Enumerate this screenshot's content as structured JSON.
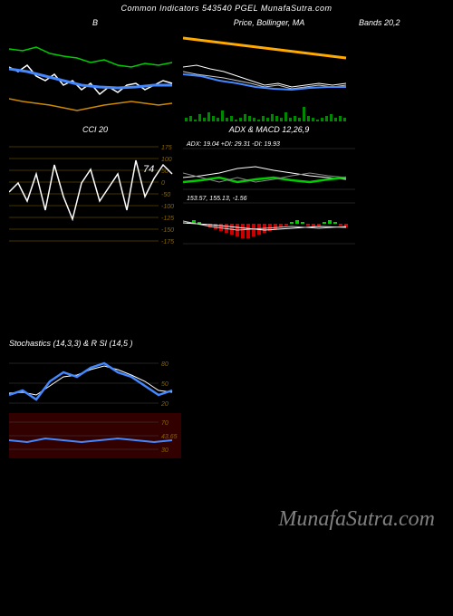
{
  "header": "Common Indicators 543540 PGEL MunafaSutra.com",
  "watermark": "MunafaSutra.com",
  "panels": {
    "bollinger": {
      "title_left": "B",
      "title_center": "Price, Bollinger, MA",
      "title_right": "Bands 20,2",
      "bg": "#000000",
      "lines": {
        "upper": {
          "color": "#00cc00",
          "width": 1.5,
          "points": [
            [
              0,
              20
            ],
            [
              15,
              22
            ],
            [
              30,
              18
            ],
            [
              45,
              25
            ],
            [
              60,
              28
            ],
            [
              75,
              30
            ],
            [
              90,
              35
            ],
            [
              105,
              32
            ],
            [
              120,
              38
            ],
            [
              135,
              40
            ],
            [
              150,
              36
            ],
            [
              165,
              38
            ],
            [
              180,
              35
            ]
          ]
        },
        "lower": {
          "color": "#cc8800",
          "width": 1.5,
          "points": [
            [
              0,
              75
            ],
            [
              15,
              78
            ],
            [
              30,
              80
            ],
            [
              45,
              82
            ],
            [
              60,
              85
            ],
            [
              75,
              88
            ],
            [
              90,
              85
            ],
            [
              105,
              82
            ],
            [
              120,
              80
            ],
            [
              135,
              78
            ],
            [
              150,
              80
            ],
            [
              165,
              82
            ],
            [
              180,
              80
            ]
          ]
        },
        "price": {
          "color": "#ffffff",
          "width": 1.5,
          "points": [
            [
              0,
              40
            ],
            [
              10,
              45
            ],
            [
              20,
              38
            ],
            [
              30,
              50
            ],
            [
              40,
              55
            ],
            [
              50,
              48
            ],
            [
              60,
              60
            ],
            [
              70,
              55
            ],
            [
              80,
              65
            ],
            [
              90,
              58
            ],
            [
              100,
              70
            ],
            [
              110,
              62
            ],
            [
              120,
              68
            ],
            [
              130,
              60
            ],
            [
              140,
              58
            ],
            [
              150,
              65
            ],
            [
              160,
              60
            ],
            [
              170,
              55
            ],
            [
              180,
              58
            ]
          ]
        },
        "ma": {
          "color": "#4488ff",
          "width": 3,
          "points": [
            [
              0,
              42
            ],
            [
              20,
              45
            ],
            [
              40,
              50
            ],
            [
              60,
              55
            ],
            [
              80,
              60
            ],
            [
              100,
              62
            ],
            [
              120,
              63
            ],
            [
              140,
              62
            ],
            [
              160,
              60
            ],
            [
              180,
              60
            ]
          ]
        }
      }
    },
    "price_right": {
      "bg": "#000000",
      "lines": {
        "orange": {
          "color": "#ffaa00",
          "width": 3,
          "points": [
            [
              0,
              8
            ],
            [
              180,
              30
            ]
          ]
        },
        "white1": {
          "color": "#ffffff",
          "width": 1,
          "points": [
            [
              0,
              40
            ],
            [
              15,
              38
            ],
            [
              30,
              42
            ],
            [
              45,
              45
            ],
            [
              60,
              50
            ],
            [
              75,
              55
            ],
            [
              90,
              60
            ],
            [
              105,
              58
            ],
            [
              120,
              62
            ],
            [
              135,
              60
            ],
            [
              150,
              58
            ],
            [
              165,
              60
            ],
            [
              180,
              58
            ]
          ]
        },
        "white2": {
          "color": "#cccccc",
          "width": 1,
          "points": [
            [
              0,
              45
            ],
            [
              15,
              48
            ],
            [
              30,
              50
            ],
            [
              45,
              52
            ],
            [
              60,
              55
            ],
            [
              75,
              58
            ],
            [
              90,
              62
            ],
            [
              105,
              60
            ],
            [
              120,
              64
            ],
            [
              135,
              62
            ],
            [
              150,
              60
            ],
            [
              165,
              62
            ],
            [
              180,
              60
            ]
          ]
        },
        "blue": {
          "color": "#4488ff",
          "width": 2,
          "points": [
            [
              0,
              48
            ],
            [
              20,
              50
            ],
            [
              40,
              55
            ],
            [
              60,
              58
            ],
            [
              80,
              62
            ],
            [
              100,
              64
            ],
            [
              120,
              65
            ],
            [
              140,
              63
            ],
            [
              160,
              62
            ],
            [
              180,
              62
            ]
          ]
        }
      },
      "volume_bars": {
        "color": "#008800",
        "heights": [
          2,
          3,
          1,
          4,
          2,
          5,
          3,
          2,
          6,
          2,
          3,
          1,
          2,
          4,
          3,
          2,
          1,
          3,
          2,
          4,
          3,
          2,
          5,
          2,
          3,
          2,
          8,
          3,
          2,
          1,
          2,
          3,
          4,
          2,
          3,
          2
        ]
      }
    },
    "cci": {
      "title": "CCI 20",
      "bg": "#000000",
      "grid_color": "#886600",
      "y_labels": [
        "175",
        "100",
        "50",
        "0",
        "-50",
        "-100",
        "-125",
        "-150",
        "-175"
      ],
      "y_label_color": "#886600",
      "current_value": "74",
      "line": {
        "color": "#ffffff",
        "width": 1.5,
        "points": [
          [
            0,
            50
          ],
          [
            10,
            40
          ],
          [
            20,
            60
          ],
          [
            30,
            30
          ],
          [
            40,
            70
          ],
          [
            50,
            20
          ],
          [
            60,
            55
          ],
          [
            70,
            80
          ],
          [
            80,
            40
          ],
          [
            90,
            25
          ],
          [
            100,
            60
          ],
          [
            110,
            45
          ],
          [
            120,
            30
          ],
          [
            130,
            70
          ],
          [
            140,
            15
          ],
          [
            150,
            55
          ],
          [
            160,
            35
          ],
          [
            170,
            20
          ],
          [
            180,
            30
          ]
        ]
      }
    },
    "adx": {
      "title": "ADX  & MACD 12,26,9",
      "label": "ADX: 19.04  +DI: 29.31 -DI: 19.93",
      "bg": "#000000",
      "lines": {
        "adx": {
          "color": "#ffffff",
          "width": 1,
          "points": [
            [
              0,
              30
            ],
            [
              20,
              28
            ],
            [
              40,
              25
            ],
            [
              60,
              20
            ],
            [
              80,
              18
            ],
            [
              100,
              22
            ],
            [
              120,
              25
            ],
            [
              140,
              28
            ],
            [
              160,
              30
            ],
            [
              180,
              32
            ]
          ]
        },
        "pdi": {
          "color": "#00cc00",
          "width": 2.5,
          "points": [
            [
              0,
              35
            ],
            [
              20,
              33
            ],
            [
              40,
              30
            ],
            [
              60,
              35
            ],
            [
              80,
              32
            ],
            [
              100,
              30
            ],
            [
              120,
              33
            ],
            [
              140,
              35
            ],
            [
              160,
              32
            ],
            [
              180,
              30
            ]
          ]
        },
        "mdi": {
          "color": "#888888",
          "width": 1,
          "points": [
            [
              0,
              25
            ],
            [
              20,
              30
            ],
            [
              40,
              35
            ],
            [
              60,
              30
            ],
            [
              80,
              35
            ],
            [
              100,
              32
            ],
            [
              120,
              28
            ],
            [
              140,
              25
            ],
            [
              160,
              28
            ],
            [
              180,
              30
            ]
          ]
        }
      }
    },
    "macd": {
      "label": "153.57, 155.13, -1.56",
      "bg": "#000000",
      "histogram": {
        "neg_color": "#cc0000",
        "pos_color": "#00cc00",
        "values": [
          1,
          2,
          1,
          -1,
          -2,
          -3,
          -4,
          -5,
          -6,
          -7,
          -8,
          -8,
          -7,
          -6,
          -5,
          -4,
          -3,
          -2,
          -1,
          1,
          2,
          1,
          -1,
          -2,
          -1,
          1,
          2,
          1,
          -1,
          -2
        ]
      },
      "signal": {
        "color": "#ffffff",
        "width": 1,
        "points": [
          [
            0,
            20
          ],
          [
            30,
            22
          ],
          [
            60,
            25
          ],
          [
            90,
            28
          ],
          [
            120,
            26
          ],
          [
            150,
            24
          ],
          [
            180,
            25
          ]
        ]
      },
      "macd_line": {
        "color": "#cccccc",
        "width": 1,
        "points": [
          [
            0,
            18
          ],
          [
            30,
            24
          ],
          [
            60,
            28
          ],
          [
            90,
            26
          ],
          [
            120,
            24
          ],
          [
            150,
            26
          ],
          [
            180,
            24
          ]
        ]
      }
    },
    "stochastics": {
      "title": "Stochastics                    (14,3,3) & R                    SI                         (14,5                              )",
      "bg_top": "#000000",
      "bg_bottom": "#330000",
      "y_labels_top": [
        "80",
        "50",
        "20"
      ],
      "y_labels_bottom": [
        "70",
        "43.65",
        "30"
      ],
      "y_label_color": "#886600",
      "top_lines": {
        "k": {
          "color": "#4488ff",
          "width": 2.5,
          "points": [
            [
              0,
              50
            ],
            [
              15,
              45
            ],
            [
              30,
              55
            ],
            [
              45,
              35
            ],
            [
              60,
              25
            ],
            [
              75,
              30
            ],
            [
              90,
              20
            ],
            [
              105,
              15
            ],
            [
              120,
              25
            ],
            [
              135,
              30
            ],
            [
              150,
              40
            ],
            [
              165,
              50
            ],
            [
              180,
              45
            ]
          ]
        },
        "d": {
          "color": "#ffffff",
          "width": 1,
          "points": [
            [
              0,
              48
            ],
            [
              15,
              47
            ],
            [
              30,
              50
            ],
            [
              45,
              40
            ],
            [
              60,
              30
            ],
            [
              75,
              28
            ],
            [
              90,
              22
            ],
            [
              105,
              18
            ],
            [
              120,
              22
            ],
            [
              135,
              28
            ],
            [
              150,
              35
            ],
            [
              165,
              45
            ],
            [
              180,
              47
            ]
          ]
        }
      },
      "bottom_line": {
        "color": "#4488ff",
        "width": 2,
        "points": [
          [
            0,
            30
          ],
          [
            20,
            32
          ],
          [
            40,
            28
          ],
          [
            60,
            30
          ],
          [
            80,
            32
          ],
          [
            100,
            30
          ],
          [
            120,
            28
          ],
          [
            140,
            30
          ],
          [
            160,
            32
          ],
          [
            180,
            30
          ]
        ]
      }
    }
  }
}
